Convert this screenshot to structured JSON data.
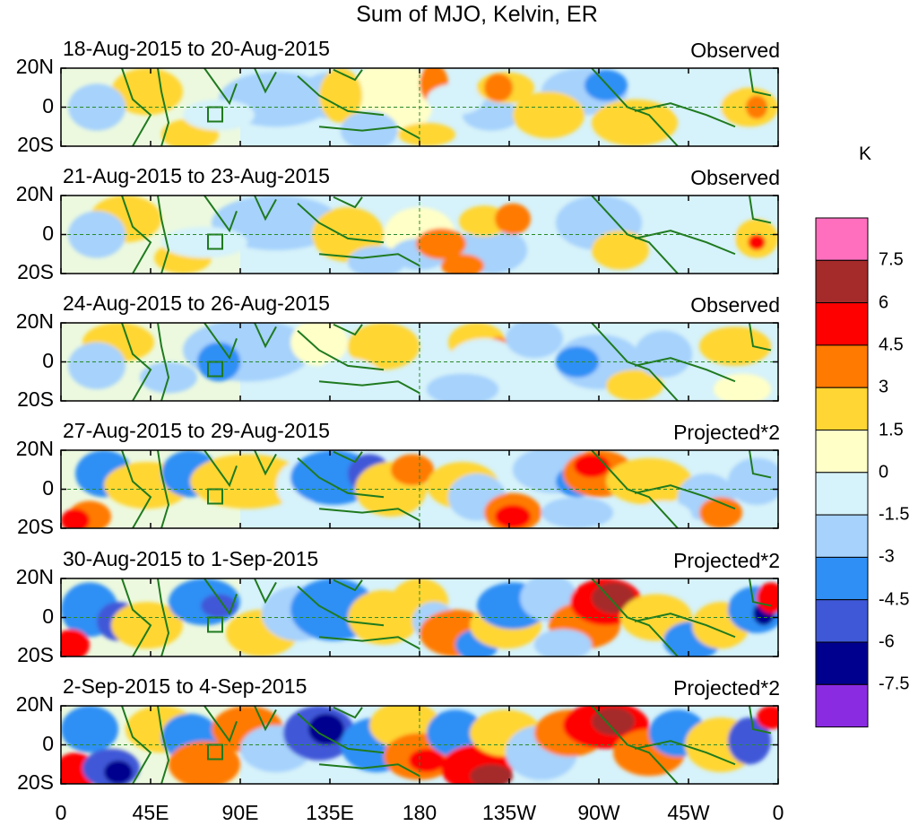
{
  "title": "Sum of MJO, Kelvin, ER",
  "panels": [
    {
      "dates": "18-Aug-2015 to 20-Aug-2015",
      "status": "Observed"
    },
    {
      "dates": "21-Aug-2015 to 23-Aug-2015",
      "status": "Observed"
    },
    {
      "dates": "24-Aug-2015 to 26-Aug-2015",
      "status": "Observed"
    },
    {
      "dates": "27-Aug-2015 to 29-Aug-2015",
      "status": "Projected*2"
    },
    {
      "dates": "30-Aug-2015 to 1-Sep-2015",
      "status": "Projected*2"
    },
    {
      "dates": "2-Sep-2015 to 4-Sep-2015",
      "status": "Projected*2"
    }
  ],
  "lat_labels": [
    "20N",
    "0",
    "20S"
  ],
  "lon_labels": [
    "0",
    "45E",
    "90E",
    "135E",
    "180",
    "135W",
    "90W",
    "45W",
    "0"
  ],
  "colorbar": {
    "unit": "K",
    "labels": [
      "7.5",
      "6",
      "4.5",
      "3",
      "1.5",
      "0",
      "-1.5",
      "-3",
      "-4.5",
      "-6",
      "-7.5"
    ],
    "colors": [
      "#ff6fbe",
      "#a52a2a",
      "#ff0000",
      "#ff7a00",
      "#ffd633",
      "#ffffc8",
      "#d6f2fa",
      "#a6d2fc",
      "#2f8ff5",
      "#3f58d8",
      "#00008f",
      "#8a2be2"
    ]
  },
  "chart_data": {
    "type": "heatmap",
    "title": "Sum of MJO, Kelvin, ER",
    "x": [
      "0",
      "45E",
      "90E",
      "135E",
      "180",
      "135W",
      "90W",
      "45W",
      "0"
    ],
    "y": [
      "20N",
      "0",
      "20S"
    ],
    "levels": [
      7.5,
      6,
      4.5,
      3,
      1.5,
      0,
      -1.5,
      -3,
      -4.5,
      -6,
      -7.5
    ],
    "colorbar_label": "K",
    "panels": [
      {
        "dates": "18-Aug-2015 to 20-Aug-2015",
        "status": "Observed"
      },
      {
        "dates": "21-Aug-2015 to 23-Aug-2015",
        "status": "Observed"
      },
      {
        "dates": "24-Aug-2015 to 26-Aug-2015",
        "status": "Observed"
      },
      {
        "dates": "27-Aug-2015 to 29-Aug-2015",
        "status": "Projected*2"
      },
      {
        "dates": "30-Aug-2015 to 1-Sep-2015",
        "status": "Projected*2"
      },
      {
        "dates": "2-Sep-2015 to 4-Sep-2015",
        "status": "Projected*2"
      }
    ]
  }
}
